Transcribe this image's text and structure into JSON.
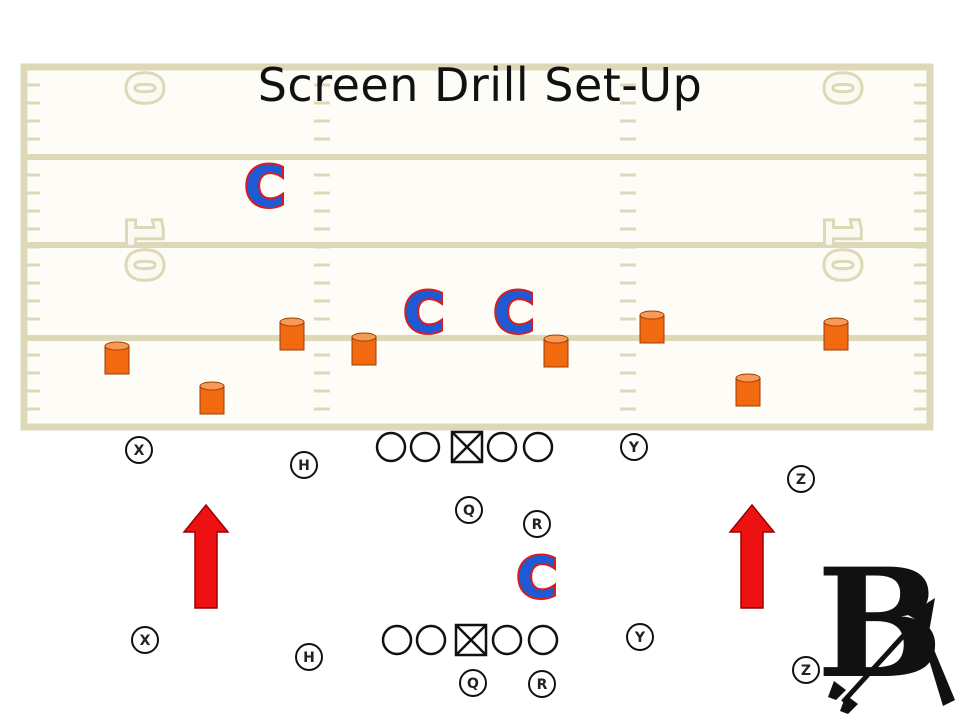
{
  "title": "Screen Drill Set-Up",
  "yard_numbers": {
    "top_left": "0",
    "top_right": "0",
    "mid_left": "1",
    "mid_right": "1",
    "low_left": "0",
    "low_right": "0"
  },
  "coverage_marker": "C",
  "logo_letter": "B",
  "formation_top": {
    "x": "X",
    "h": "H",
    "y": "Y",
    "z": "Z",
    "q": "Q",
    "r": "R"
  },
  "formation_bottom": {
    "x": "X",
    "h": "H",
    "y": "Y",
    "z": "Z",
    "q": "Q",
    "r": "R"
  },
  "colors": {
    "field_line": "#ddd9b8",
    "cone": "#f26a10",
    "arrow": "#ee1111",
    "c_fill": "#1e5ad6",
    "c_outline": "#d71d1d"
  }
}
